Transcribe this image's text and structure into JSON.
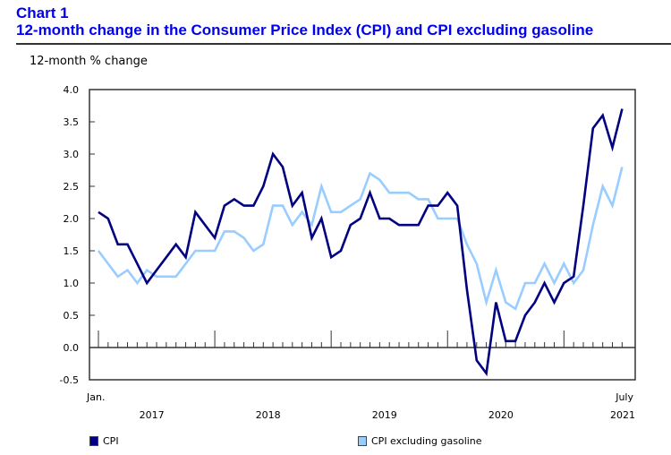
{
  "header": {
    "chart_number": "Chart 1",
    "chart_title": "12-month change in the Consumer Price Index (CPI) and CPI excluding gasoline"
  },
  "chart_data": {
    "type": "line",
    "title": "12-month change in the Consumer Price Index (CPI) and CPI excluding gasoline",
    "ylabel": "12-month % change",
    "xlabel": "",
    "ylim": [
      -0.5,
      4.0
    ],
    "yticks": [
      "4.0",
      "3.5",
      "3.0",
      "2.5",
      "2.0",
      "1.5",
      "1.0",
      "0.5",
      "0.0",
      "-0.5"
    ],
    "ytick_values": [
      4.0,
      3.5,
      3.0,
      2.5,
      2.0,
      1.5,
      1.0,
      0.5,
      0.0,
      -0.5
    ],
    "x_start": "Jan. 2017",
    "x_end": "July 2021",
    "x_first_label": "Jan.",
    "x_last_label": "July",
    "year_labels": [
      "2017",
      "2018",
      "2019",
      "2020",
      "2021"
    ],
    "grid": false,
    "legend_position": "bottom",
    "series": [
      {
        "name": "CPI",
        "color": "#000080",
        "values": [
          2.1,
          2.0,
          1.6,
          1.6,
          1.3,
          1.0,
          1.2,
          1.4,
          1.6,
          1.4,
          2.1,
          1.9,
          1.7,
          2.2,
          2.3,
          2.2,
          2.2,
          2.5,
          3.0,
          2.8,
          2.2,
          2.4,
          1.7,
          2.0,
          1.4,
          1.5,
          1.9,
          2.0,
          2.4,
          2.0,
          2.0,
          1.9,
          1.9,
          1.9,
          2.2,
          2.2,
          2.4,
          2.2,
          0.9,
          -0.2,
          -0.4,
          0.7,
          0.1,
          0.1,
          0.5,
          0.7,
          1.0,
          0.7,
          1.0,
          1.1,
          2.2,
          3.4,
          3.6,
          3.1,
          3.7
        ]
      },
      {
        "name": "CPI excluding gasoline",
        "color": "#99ccff",
        "values": [
          1.5,
          1.3,
          1.1,
          1.2,
          1.0,
          1.2,
          1.1,
          1.1,
          1.1,
          1.3,
          1.5,
          1.5,
          1.5,
          1.8,
          1.8,
          1.7,
          1.5,
          1.6,
          2.2,
          2.2,
          1.9,
          2.1,
          1.9,
          2.5,
          2.1,
          2.1,
          2.2,
          2.3,
          2.7,
          2.6,
          2.4,
          2.4,
          2.4,
          2.3,
          2.3,
          2.0,
          2.0,
          2.0,
          1.6,
          1.3,
          0.7,
          1.2,
          0.7,
          0.6,
          1.0,
          1.0,
          1.3,
          1.0,
          1.3,
          1.0,
          1.2,
          1.9,
          2.5,
          2.2,
          2.8
        ]
      }
    ]
  },
  "legend": {
    "items": [
      {
        "label": "CPI",
        "color": "#000080"
      },
      {
        "label": "CPI excluding gasoline",
        "color": "#99ccff"
      }
    ]
  }
}
